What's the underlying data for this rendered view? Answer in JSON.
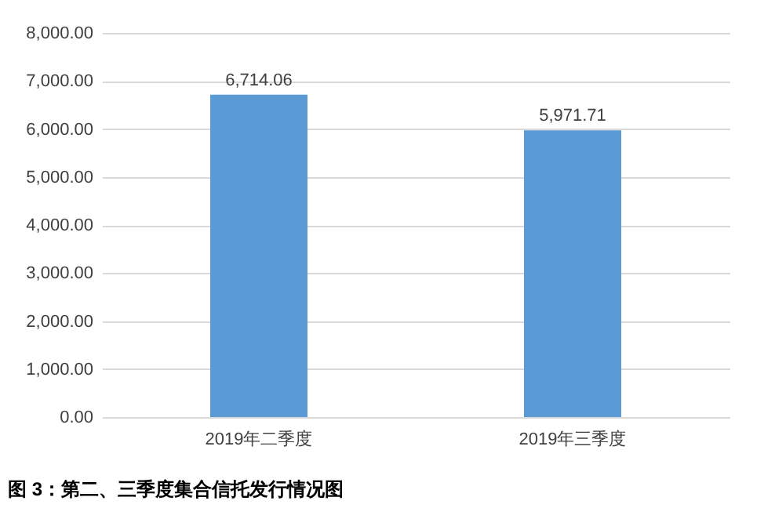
{
  "chart_data": {
    "type": "bar",
    "title": "图 3：第二、三季度集合信托发行情况图",
    "categories": [
      "2019年二季度",
      "2019年三季度"
    ],
    "values": [
      6714.06,
      5971.71
    ],
    "color": "#5b9bd5",
    "value_labels": [
      "6,714.06",
      "5,971.71"
    ],
    "ylim": [
      0,
      8000
    ],
    "yticks": [
      {
        "value": 0,
        "label": "0.00"
      },
      {
        "value": 1000,
        "label": "1,000.00"
      },
      {
        "value": 2000,
        "label": "2,000.00"
      },
      {
        "value": 3000,
        "label": "3,000.00"
      },
      {
        "value": 4000,
        "label": "4,000.00"
      },
      {
        "value": 5000,
        "label": "5,000.00"
      },
      {
        "value": 6000,
        "label": "6,000.00"
      },
      {
        "value": 7000,
        "label": "7,000.00"
      },
      {
        "value": 8000,
        "label": "8,000.00"
      }
    ],
    "grid": true
  }
}
